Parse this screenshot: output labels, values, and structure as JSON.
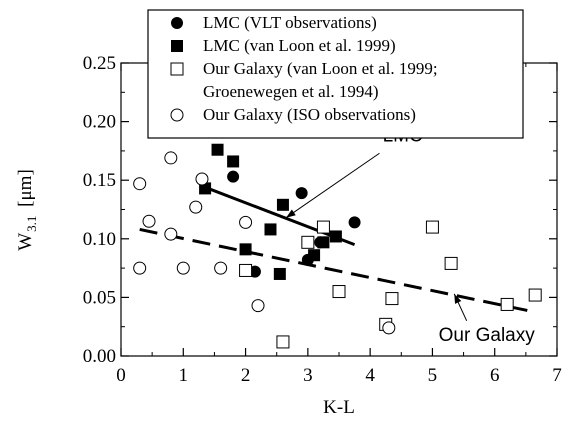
{
  "chart_data": {
    "type": "scatter",
    "xlabel": "K-L",
    "ylabel_main": "W",
    "ylabel_sub": "3.1",
    "ylabel_unit": "[μm]",
    "xlim": [
      0,
      7
    ],
    "ylim": [
      0,
      0.25
    ],
    "x_ticks": [
      "0",
      "1",
      "2",
      "3",
      "4",
      "5",
      "6",
      "7"
    ],
    "y_ticks": [
      "0.00",
      "0.05",
      "0.10",
      "0.15",
      "0.20",
      "0.25"
    ],
    "grid": false,
    "legend_position": "top-center",
    "legend": [
      {
        "marker": "filled-circle",
        "label": "LMC (VLT observations)"
      },
      {
        "marker": "filled-square",
        "label": "LMC (van Loon et al. 1999)"
      },
      {
        "marker": "open-square",
        "label": "Our Galaxy (van Loon et al. 1999;",
        "label_cont": "Groenewegen et al. 1994)"
      },
      {
        "marker": "open-circle",
        "label": "Our Galaxy (ISO observations)"
      }
    ],
    "series": [
      {
        "name": "LMC (VLT observations)",
        "marker": "filled-circle",
        "points": [
          [
            1.8,
            0.153
          ],
          [
            2.15,
            0.072
          ],
          [
            2.9,
            0.139
          ],
          [
            3.0,
            0.082
          ],
          [
            3.2,
            0.097
          ],
          [
            3.75,
            0.114
          ]
        ]
      },
      {
        "name": "LMC (van Loon et al. 1999)",
        "marker": "filled-square",
        "points": [
          [
            1.35,
            0.143
          ],
          [
            1.55,
            0.176
          ],
          [
            1.8,
            0.166
          ],
          [
            2.0,
            0.091
          ],
          [
            2.4,
            0.108
          ],
          [
            2.55,
            0.07
          ],
          [
            2.6,
            0.129
          ],
          [
            3.1,
            0.086
          ],
          [
            3.25,
            0.097
          ],
          [
            3.45,
            0.102
          ]
        ]
      },
      {
        "name": "Our Galaxy (van Loon et al. 1999; Groenewegen et al. 1994)",
        "marker": "open-square",
        "points": [
          [
            2.0,
            0.073
          ],
          [
            2.6,
            0.012
          ],
          [
            3.0,
            0.097
          ],
          [
            3.25,
            0.11
          ],
          [
            3.5,
            0.055
          ],
          [
            4.25,
            0.027
          ],
          [
            4.35,
            0.049
          ],
          [
            5.0,
            0.11
          ],
          [
            5.3,
            0.079
          ],
          [
            6.2,
            0.044
          ],
          [
            6.65,
            0.052
          ]
        ]
      },
      {
        "name": "Our Galaxy (ISO observations)",
        "marker": "open-circle",
        "points": [
          [
            0.3,
            0.075
          ],
          [
            0.3,
            0.147
          ],
          [
            0.45,
            0.115
          ],
          [
            0.8,
            0.104
          ],
          [
            0.8,
            0.169
          ],
          [
            1.0,
            0.075
          ],
          [
            1.2,
            0.127
          ],
          [
            1.3,
            0.151
          ],
          [
            1.6,
            0.075
          ],
          [
            2.0,
            0.114
          ],
          [
            2.2,
            0.043
          ],
          [
            4.3,
            0.024
          ]
        ]
      }
    ],
    "fits": [
      {
        "label": "LMC",
        "style": "solid",
        "x": [
          1.3,
          3.75
        ],
        "y": [
          0.145,
          0.095
        ]
      },
      {
        "label": "Our Galaxy",
        "style": "dashed",
        "x": [
          0.3,
          6.6
        ],
        "y": [
          0.108,
          0.038
        ]
      }
    ],
    "annotations": [
      {
        "text": "LMC",
        "text_at": [
          4.2,
          0.183
        ],
        "arrow_from": [
          4.15,
          0.173
        ],
        "arrow_to": [
          2.65,
          0.118
        ]
      },
      {
        "text": "Our Galaxy",
        "text_at": [
          5.1,
          0.013
        ],
        "arrow_from": [
          5.55,
          0.03
        ],
        "arrow_to": [
          5.35,
          0.053
        ]
      }
    ]
  }
}
